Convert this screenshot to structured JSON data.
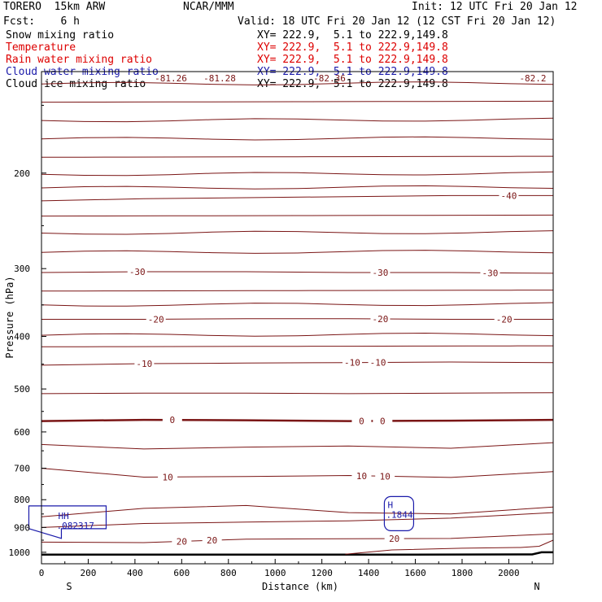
{
  "header": {
    "model": "TORERO  15km ARW",
    "center": "NCAR/MMM",
    "init": "Init: 12 UTC Fri 20 Jan 12",
    "fcst": "Fcst:    6 h",
    "valid": "Valid: 18 UTC Fri 20 Jan 12 (12 CST Fri 20 Jan 12)"
  },
  "fields": [
    {
      "name": "Snow mixing ratio",
      "xy": "XY= 222.9,  5.1 to 222.9,149.8",
      "color": "#000000"
    },
    {
      "name": "Temperature",
      "xy": "XY= 222.9,  5.1 to 222.9,149.8",
      "color": "#dd0000"
    },
    {
      "name": "Rain water mixing ratio",
      "xy": "XY= 222.9,  5.1 to 222.9,149.8",
      "color": "#dd0000"
    },
    {
      "name": "Cloud water mixing ratio",
      "xy": "XY= 222.9,  5.1 to 222.9,149.8",
      "color": "#1a1aaa"
    },
    {
      "name": "Cloud ice mixing ratio",
      "xy": "XY= 222.9,  5.1 to 222.9,149.8",
      "color": "#000000"
    }
  ],
  "chart_data": {
    "type": "contour cross-section",
    "xlabel": "Distance (km)",
    "ylabel": "Pressure (hPa)",
    "xlim": [
      0,
      2190
    ],
    "ylim": [
      1050,
      130
    ],
    "y_scale": "log",
    "x_ticks": [
      "0",
      "200",
      "400",
      "600",
      "800",
      "1000",
      "1200",
      "1400",
      "1600",
      "1800",
      "2000"
    ],
    "y_ticks": [
      "200",
      "300",
      "400",
      "500",
      "600",
      "700",
      "800",
      "900",
      "1000"
    ],
    "endpoints": {
      "left": "S",
      "right": "N"
    },
    "top_labels": [
      "-81.26",
      "-81.28",
      "-82.36",
      "-82.2"
    ],
    "temperature_isotherms": [
      {
        "label": "-40",
        "pressure": [
          225,
          223,
          222,
          221,
          220,
          220
        ],
        "labels_at_km": [
          2000
        ]
      },
      {
        "label": "-30",
        "pressure": [
          305,
          304,
          304,
          305,
          305,
          306
        ],
        "labels_at_km": [
          410,
          1450,
          1920
        ]
      },
      {
        "label": "-20",
        "pressure": [
          372,
          372,
          371,
          371,
          372,
          372
        ],
        "labels_at_km": [
          490,
          1450,
          1980
        ]
      },
      {
        "label": "-10",
        "pressure": [
          452,
          449,
          448,
          447,
          446,
          447
        ],
        "labels_at_km": [
          440,
          1330,
          1440
        ]
      },
      {
        "label": "0",
        "pressure": [
          573,
          570,
          571,
          573,
          572,
          570
        ],
        "labels_at_km": [
          560,
          1370,
          1460
        ]
      },
      {
        "label": "10",
        "pressure": [
          700,
          727,
          725,
          722,
          728,
          710
        ],
        "labels_at_km": [
          540,
          1370,
          1470
        ]
      },
      {
        "label": "20",
        "pressure": [
          958,
          960,
          946,
          944,
          943,
          925
        ],
        "labels_at_km": [
          600,
          730,
          1510
        ]
      }
    ],
    "cloud_water_maxima": [
      {
        "mark": "HH",
        "value": ".082317",
        "distance_km": 120,
        "pressure_hPa": 880
      },
      {
        "mark": "H",
        "value": ".1844",
        "distance_km": 1530,
        "pressure_hPa": 840
      }
    ]
  }
}
